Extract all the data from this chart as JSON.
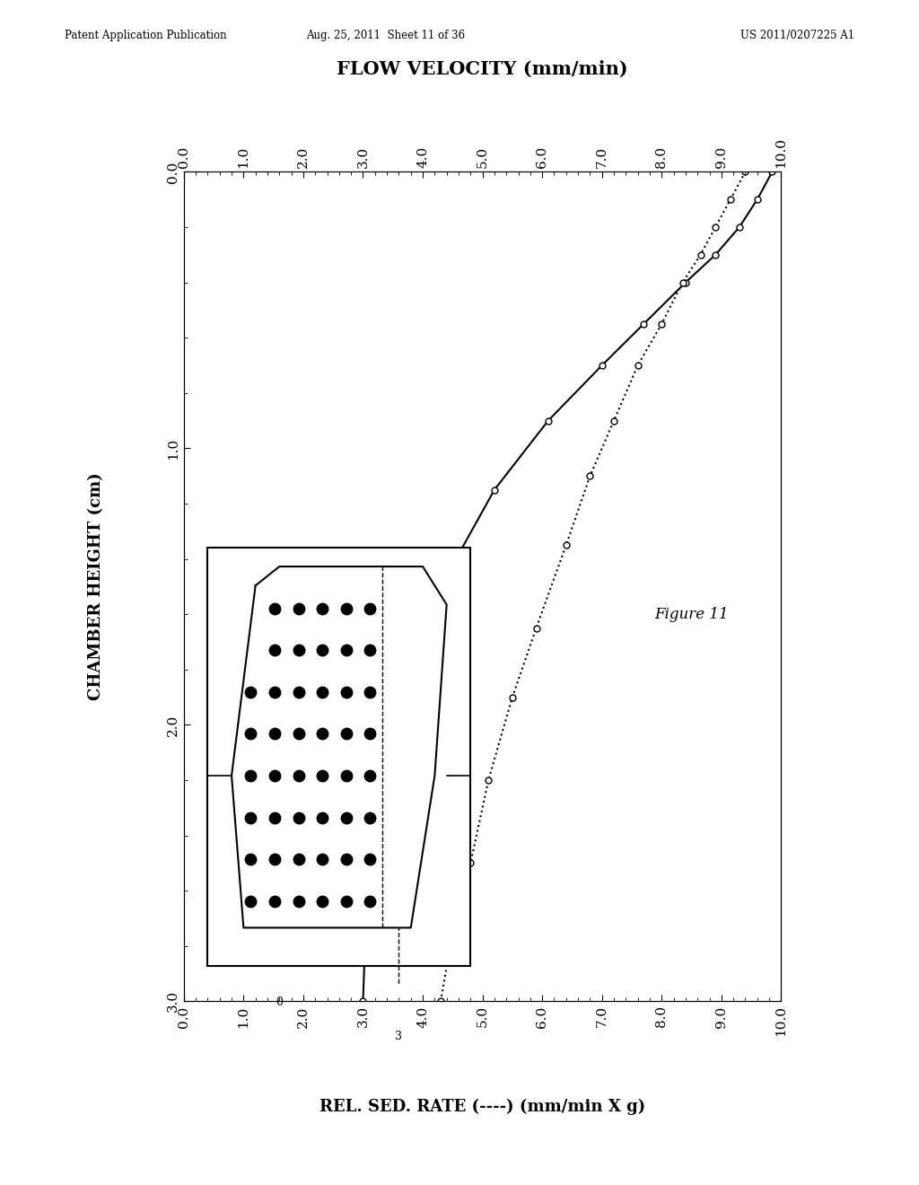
{
  "title_top": "FLOW VELOCITY (mm/min)",
  "xlabel_bottom": "REL. SED. RATE (----) (mm/min X g)",
  "ylabel": "CHAMBER HEIGHT (cm)",
  "figure_label": "Figure 11",
  "header_left": "Patent Application Publication",
  "header_mid": "Aug. 25, 2011  Sheet 11 of 36",
  "header_right": "US 2011/0207225 A1",
  "x_ticks": [
    0.0,
    1.0,
    2.0,
    3.0,
    4.0,
    5.0,
    6.0,
    7.0,
    8.0,
    9.0,
    10.0
  ],
  "y_ticks": [
    0.0,
    1.0,
    2.0,
    3.0
  ],
  "solid_line_x": [
    9.85,
    9.6,
    9.3,
    8.9,
    8.4,
    7.7,
    7.0,
    6.1,
    5.2,
    4.3,
    3.5,
    3.05,
    3.0
  ],
  "solid_line_y": [
    0.0,
    0.1,
    0.2,
    0.3,
    0.4,
    0.55,
    0.7,
    0.9,
    1.15,
    1.5,
    2.0,
    2.7,
    3.0
  ],
  "dashed_line_x": [
    9.4,
    9.15,
    8.9,
    8.65,
    8.35,
    8.0,
    7.6,
    7.2,
    6.8,
    6.4,
    5.9,
    5.5,
    5.1,
    4.8,
    4.5,
    4.3
  ],
  "dashed_line_y": [
    0.0,
    0.1,
    0.2,
    0.3,
    0.4,
    0.55,
    0.7,
    0.9,
    1.1,
    1.35,
    1.65,
    1.9,
    2.2,
    2.5,
    2.75,
    3.0
  ],
  "bg_color": "#ffffff",
  "line_color": "#000000",
  "dashed_color": "#000000",
  "marker_color": "#ffffff",
  "marker_edge_color": "#000000",
  "inset_label_0": "0",
  "inset_label_3": "3"
}
